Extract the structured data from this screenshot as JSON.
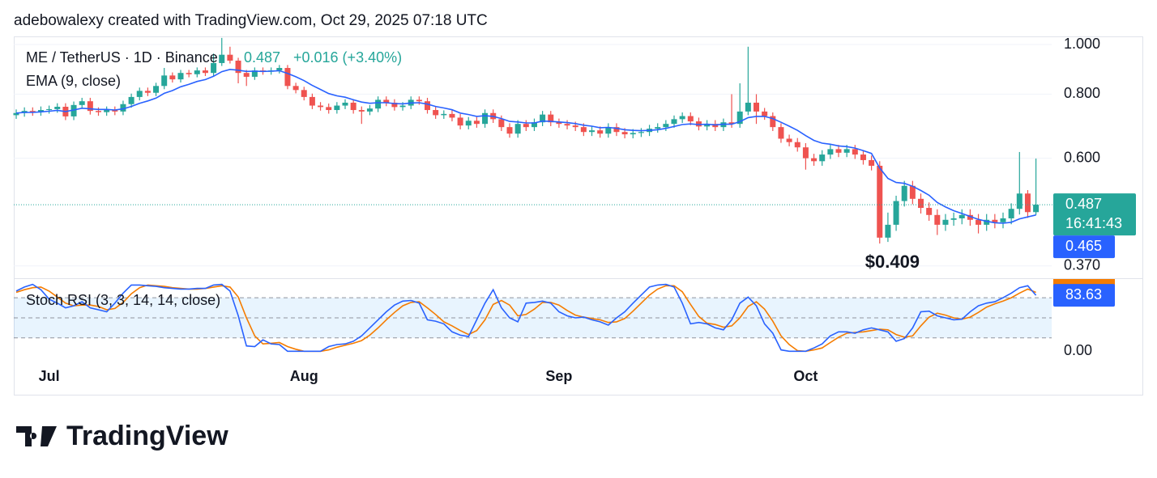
{
  "header": "adebowalexy created with TradingView.com, Oct 29, 2025 07:18 UTC",
  "logo": "TradingView",
  "chart_data": [
    {
      "type": "candlestick",
      "title": "ME / TetherUS · 1D · Binance",
      "change": "+0.016 (+3.40%)",
      "countdown": "16:41:43",
      "annotation": "$0.409",
      "categories": [
        null,
        null,
        null,
        null,
        "Jul",
        null,
        null,
        null,
        null,
        null,
        null,
        null,
        null,
        null,
        null,
        null,
        null,
        null,
        null,
        null,
        null,
        null,
        null,
        null,
        null,
        null,
        null,
        null,
        null,
        null,
        null,
        null,
        null,
        null,
        null,
        "Aug",
        null,
        null,
        null,
        null,
        null,
        null,
        null,
        null,
        null,
        null,
        null,
        null,
        null,
        null,
        null,
        null,
        null,
        null,
        null,
        null,
        null,
        null,
        null,
        null,
        null,
        null,
        null,
        null,
        null,
        null,
        "Sep",
        null,
        null,
        null,
        null,
        null,
        null,
        null,
        null,
        null,
        null,
        null,
        null,
        null,
        null,
        null,
        null,
        null,
        null,
        null,
        null,
        null,
        null,
        null,
        null,
        null,
        null,
        null,
        null,
        null,
        "Oct",
        null,
        null,
        null,
        null,
        null,
        null,
        null,
        null,
        null,
        null,
        null,
        null,
        null,
        null,
        null,
        null,
        null,
        null,
        null,
        null,
        null,
        null,
        null,
        null,
        null,
        null,
        null,
        null
      ],
      "series": [
        {
          "name": "ME / TetherUS · 1D · Binance",
          "up_color": "#26a69a",
          "down_color": "#ef5350",
          "open": [
            0.728,
            0.735,
            0.742,
            0.738,
            0.745,
            0.748,
            0.756,
            0.724,
            0.762,
            0.775,
            0.742,
            0.738,
            0.745,
            0.74,
            0.765,
            0.79,
            0.812,
            0.805,
            0.83,
            0.87,
            0.855,
            0.88,
            0.875,
            0.89,
            0.88,
            0.92,
            0.955,
            0.93,
            0.88,
            0.865,
            0.89,
            0.885,
            0.89,
            0.9,
            0.83,
            0.815,
            0.79,
            0.76,
            0.755,
            0.745,
            0.76,
            0.77,
            0.745,
            0.74,
            0.75,
            0.78,
            0.77,
            0.755,
            0.76,
            0.78,
            0.775,
            0.745,
            0.728,
            0.732,
            0.72,
            0.695,
            0.71,
            0.7,
            0.735,
            0.715,
            0.69,
            0.67,
            0.7,
            0.69,
            0.705,
            0.73,
            0.705,
            0.7,
            0.695,
            0.69,
            0.675,
            0.68,
            0.67,
            0.69,
            0.675,
            0.668,
            0.672,
            0.675,
            0.685,
            0.69,
            0.7,
            0.715,
            0.725,
            0.708,
            0.692,
            0.7,
            0.69,
            0.705,
            0.7,
            0.74,
            0.77,
            0.74,
            0.725,
            0.69,
            0.655,
            0.645,
            0.63,
            0.6,
            0.592,
            0.61,
            0.625,
            0.615,
            0.625,
            0.61,
            0.595,
            0.58,
            0.42,
            0.445,
            0.495,
            0.53,
            0.5,
            0.48,
            0.465,
            0.445,
            0.455,
            0.458,
            0.465,
            0.455,
            0.445,
            0.455,
            0.45,
            0.458,
            0.478,
            0.512,
            0.471
          ],
          "high": [
            0.747,
            0.754,
            0.754,
            0.757,
            0.76,
            0.768,
            0.768,
            0.774,
            0.787,
            0.787,
            0.754,
            0.757,
            0.757,
            0.777,
            0.802,
            0.824,
            0.824,
            0.842,
            0.9,
            0.882,
            0.892,
            0.892,
            0.902,
            0.902,
            0.96,
            1.03,
            0.99,
            0.942,
            0.892,
            0.902,
            0.902,
            0.902,
            0.912,
            0.912,
            0.842,
            0.827,
            0.802,
            0.772,
            0.767,
            0.772,
            0.782,
            0.782,
            0.757,
            0.762,
            0.792,
            0.792,
            0.782,
            0.772,
            0.792,
            0.792,
            0.787,
            0.757,
            0.744,
            0.744,
            0.732,
            0.722,
            0.722,
            0.747,
            0.747,
            0.727,
            0.702,
            0.712,
            0.712,
            0.717,
            0.742,
            0.742,
            0.717,
            0.712,
            0.707,
            0.702,
            0.692,
            0.692,
            0.702,
            0.702,
            0.687,
            0.684,
            0.687,
            0.697,
            0.702,
            0.712,
            0.727,
            0.737,
            0.737,
            0.72,
            0.712,
            0.712,
            0.717,
            0.8,
            0.84,
            0.99,
            0.8,
            0.752,
            0.737,
            0.702,
            0.667,
            0.657,
            0.642,
            0.612,
            0.622,
            0.637,
            0.637,
            0.637,
            0.637,
            0.622,
            0.607,
            0.592,
            0.47,
            0.507,
            0.542,
            0.542,
            0.512,
            0.492,
            0.477,
            0.467,
            0.47,
            0.477,
            0.477,
            0.467,
            0.467,
            0.467,
            0.47,
            0.49,
            0.617,
            0.52,
            0.599
          ],
          "low": [
            0.716,
            0.723,
            0.726,
            0.726,
            0.733,
            0.736,
            0.712,
            0.712,
            0.75,
            0.73,
            0.726,
            0.726,
            0.728,
            0.728,
            0.753,
            0.778,
            0.793,
            0.793,
            0.818,
            0.843,
            0.843,
            0.863,
            0.863,
            0.868,
            0.868,
            0.908,
            0.918,
            0.84,
            0.83,
            0.853,
            0.873,
            0.873,
            0.878,
            0.818,
            0.803,
            0.778,
            0.748,
            0.743,
            0.733,
            0.733,
            0.748,
            0.733,
            0.7,
            0.728,
            0.738,
            0.758,
            0.743,
            0.743,
            0.748,
            0.763,
            0.733,
            0.716,
            0.716,
            0.708,
            0.683,
            0.683,
            0.688,
            0.688,
            0.703,
            0.678,
            0.658,
            0.658,
            0.678,
            0.678,
            0.693,
            0.693,
            0.688,
            0.683,
            0.678,
            0.663,
            0.663,
            0.658,
            0.658,
            0.663,
            0.656,
            0.656,
            0.66,
            0.663,
            0.673,
            0.678,
            0.688,
            0.703,
            0.696,
            0.68,
            0.68,
            0.678,
            0.678,
            0.688,
            0.688,
            0.728,
            0.7,
            0.713,
            0.678,
            0.643,
            0.633,
            0.618,
            0.57,
            0.58,
            0.58,
            0.598,
            0.603,
            0.603,
            0.598,
            0.583,
            0.568,
            0.409,
            0.412,
            0.433,
            0.483,
            0.488,
            0.468,
            0.453,
            0.425,
            0.433,
            0.443,
            0.446,
            0.443,
            0.428,
            0.433,
            0.438,
            0.438,
            0.446,
            0.466,
            0.459,
            0.465
          ],
          "close": [
            0.735,
            0.742,
            0.738,
            0.745,
            0.748,
            0.756,
            0.724,
            0.762,
            0.775,
            0.742,
            0.738,
            0.745,
            0.74,
            0.765,
            0.79,
            0.812,
            0.805,
            0.83,
            0.87,
            0.855,
            0.88,
            0.875,
            0.89,
            0.88,
            0.92,
            0.955,
            0.93,
            0.88,
            0.865,
            0.89,
            0.885,
            0.89,
            0.9,
            0.83,
            0.815,
            0.79,
            0.76,
            0.755,
            0.745,
            0.76,
            0.77,
            0.745,
            0.74,
            0.75,
            0.78,
            0.77,
            0.755,
            0.76,
            0.78,
            0.775,
            0.745,
            0.728,
            0.732,
            0.72,
            0.695,
            0.71,
            0.7,
            0.735,
            0.715,
            0.69,
            0.67,
            0.7,
            0.69,
            0.705,
            0.73,
            0.705,
            0.7,
            0.695,
            0.69,
            0.675,
            0.68,
            0.67,
            0.69,
            0.675,
            0.668,
            0.672,
            0.675,
            0.685,
            0.69,
            0.7,
            0.715,
            0.725,
            0.708,
            0.692,
            0.7,
            0.69,
            0.705,
            0.7,
            0.74,
            0.77,
            0.74,
            0.725,
            0.69,
            0.655,
            0.645,
            0.63,
            0.6,
            0.592,
            0.61,
            0.625,
            0.615,
            0.625,
            0.61,
            0.595,
            0.58,
            0.42,
            0.445,
            0.495,
            0.53,
            0.5,
            0.48,
            0.465,
            0.445,
            0.455,
            0.458,
            0.465,
            0.455,
            0.445,
            0.455,
            0.45,
            0.458,
            0.478,
            0.512,
            0.471,
            0.487
          ]
        },
        {
          "name": "EMA (9, close)",
          "color": "#2962ff",
          "values": [
            0.735,
            0.737,
            0.737,
            0.739,
            0.741,
            0.744,
            0.74,
            0.745,
            0.751,
            0.749,
            0.747,
            0.747,
            0.745,
            0.749,
            0.757,
            0.768,
            0.776,
            0.786,
            0.803,
            0.813,
            0.827,
            0.836,
            0.847,
            0.854,
            0.867,
            0.885,
            0.894,
            0.891,
            0.886,
            0.887,
            0.886,
            0.887,
            0.889,
            0.878,
            0.865,
            0.85,
            0.832,
            0.817,
            0.802,
            0.794,
            0.789,
            0.78,
            0.772,
            0.768,
            0.77,
            0.77,
            0.767,
            0.766,
            0.769,
            0.77,
            0.765,
            0.757,
            0.752,
            0.746,
            0.735,
            0.73,
            0.724,
            0.726,
            0.724,
            0.717,
            0.708,
            0.706,
            0.703,
            0.703,
            0.709,
            0.708,
            0.706,
            0.704,
            0.701,
            0.696,
            0.693,
            0.688,
            0.689,
            0.686,
            0.682,
            0.68,
            0.679,
            0.68,
            0.682,
            0.686,
            0.692,
            0.698,
            0.7,
            0.698,
            0.699,
            0.697,
            0.699,
            0.699,
            0.707,
            0.72,
            0.724,
            0.724,
            0.717,
            0.705,
            0.693,
            0.68,
            0.664,
            0.65,
            0.642,
            0.639,
            0.634,
            0.632,
            0.628,
            0.621,
            0.613,
            0.574,
            0.548,
            0.538,
            0.536,
            0.529,
            0.519,
            0.508,
            0.492,
            0.482,
            0.474,
            0.468,
            0.462,
            0.456,
            0.452,
            0.449,
            0.448,
            0.45,
            0.457,
            0.461,
            0.465
          ]
        }
      ],
      "ylim": [
        0.35,
        1.037
      ],
      "log_scale": true,
      "grid": true,
      "yticks": [
        {
          "value": 1.0,
          "label": "1.000"
        },
        {
          "value": 0.8,
          "label": "0.800"
        },
        {
          "value": 0.6,
          "label": "0.600"
        },
        {
          "value": 0.37,
          "label": "0.370"
        }
      ]
    },
    {
      "type": "line",
      "title": "Stoch RSI (3, 3, 14, 14, close)",
      "series": [
        {
          "color": "#2962ff",
          "values": [
            90,
            96,
            100,
            92,
            78,
            72,
            65,
            68,
            74,
            65,
            62,
            59,
            72,
            87,
            99,
            99,
            98,
            97,
            95,
            94,
            93,
            93,
            94,
            94,
            99,
            100,
            90,
            53,
            8,
            7,
            17,
            11,
            10,
            0,
            0,
            0,
            0,
            0,
            7,
            10,
            11,
            15,
            23,
            35,
            47,
            59,
            69,
            75,
            76,
            72,
            47,
            45,
            41,
            29,
            24,
            22,
            47,
            72,
            92,
            65,
            50,
            44,
            72,
            73,
            75,
            72,
            59,
            53,
            50,
            51,
            47,
            44,
            39,
            50,
            59,
            72,
            84,
            96,
            99,
            100,
            96,
            72,
            41,
            43,
            41,
            35,
            32,
            47,
            72,
            81,
            68,
            41,
            27,
            2,
            0,
            0,
            0,
            5,
            11,
            23,
            29,
            29,
            27,
            32,
            35,
            32,
            29,
            15,
            19,
            35,
            59,
            60,
            53,
            50,
            47,
            48,
            59,
            68,
            72,
            74,
            80,
            87,
            95,
            98,
            83.63
          ]
        },
        {
          "color": "#f57c00",
          "values": [
            88,
            92,
            95,
            96,
            90,
            81,
            72,
            68,
            69,
            69,
            67,
            62,
            64,
            73,
            86,
            95,
            99,
            98,
            97,
            95,
            94,
            93,
            93,
            94,
            96,
            98,
            96,
            81,
            50,
            23,
            11,
            12,
            13,
            7,
            3,
            0,
            0,
            0,
            2,
            6,
            9,
            12,
            16,
            24,
            35,
            47,
            58,
            68,
            73,
            74,
            65,
            55,
            44,
            38,
            31,
            25,
            31,
            47,
            70,
            76,
            69,
            53,
            55,
            63,
            73,
            73,
            69,
            61,
            54,
            51,
            49,
            47,
            43,
            44,
            49,
            60,
            72,
            84,
            93,
            98,
            98,
            89,
            70,
            52,
            42,
            40,
            36,
            38,
            50,
            67,
            74,
            63,
            45,
            23,
            10,
            1,
            0,
            2,
            5,
            13,
            21,
            27,
            28,
            29,
            31,
            33,
            32,
            25,
            21,
            23,
            38,
            51,
            57,
            54,
            50,
            48,
            51,
            58,
            66,
            71,
            75,
            80,
            87,
            93,
            88
          ]
        }
      ],
      "ylim": [
        -19,
        108
      ],
      "yticks": [
        {
          "value": 0,
          "label": "0.00"
        }
      ],
      "levels": [
        80,
        50,
        20
      ],
      "band_color": "#2196f3"
    }
  ]
}
